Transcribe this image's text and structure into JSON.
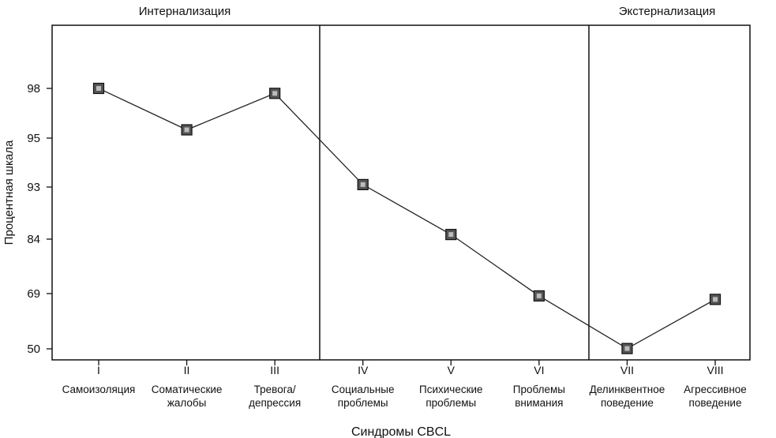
{
  "chart_data": {
    "type": "line",
    "title": "",
    "group_labels": [
      "Интернализация",
      "Экстернализация"
    ],
    "xlabel": "Синдромы CBCL",
    "ylabel": "Процентная шкала",
    "categories": [
      "I",
      "II",
      "III",
      "IV",
      "V",
      "VI",
      "VII",
      "VIII"
    ],
    "category_names": [
      [
        "Самоизоляция"
      ],
      [
        "Соматические",
        "жалобы"
      ],
      [
        "Тревога/",
        "депрессия"
      ],
      [
        "Социальные",
        "проблемы"
      ],
      [
        "Психические",
        "проблемы"
      ],
      [
        "Проблемы",
        "внимания"
      ],
      [
        "Делинквентное",
        "поведение"
      ],
      [
        "Агрессивное",
        "поведение"
      ]
    ],
    "yticks": [
      "98",
      "95",
      "93",
      "84",
      "69",
      "50"
    ],
    "tick_scale_note": "non-linear percentile scale",
    "series": [
      {
        "values": [
          98,
          95.5,
          97.7,
          93.1,
          84.8,
          68.2,
          50.1,
          67
        ]
      }
    ],
    "ytick_levels": [
      98,
      95,
      93,
      84,
      69,
      50
    ],
    "grid": false,
    "legend": "none",
    "colors": {
      "line": "#222222",
      "marker": "#555555",
      "frame": "#111111"
    }
  }
}
